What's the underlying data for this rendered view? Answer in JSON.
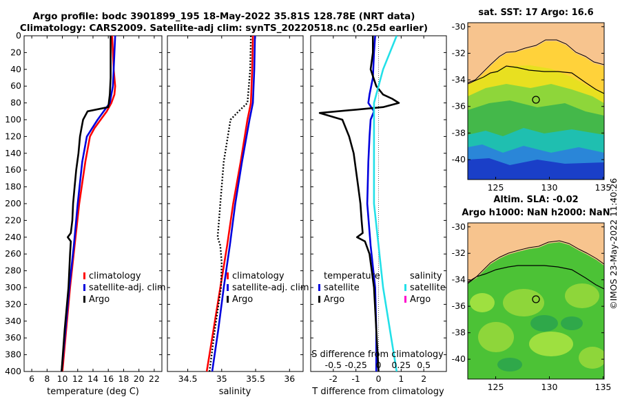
{
  "header": {
    "title_line1": "Argo profile: bodc 3901899_195 18-May-2022 35.81S 128.78E (NRT data)",
    "title_line2": "Climatology: CARS2009. Satellite-adj clim: synTS_20220518.nc (0.25d earlier)"
  },
  "timestamp": "©IMOS 23-May-2022 11:40:26",
  "colors": {
    "climatology": "#ff0000",
    "satellite": "#0000dd",
    "argo": "#000000",
    "salinity_sat": "#22e0e8",
    "salinity_argo": "#ff00cc",
    "land": "#f7c48e"
  },
  "chart_data": [
    {
      "type": "line",
      "title": "",
      "xlabel": "temperature (deg C)",
      "ylabel": "",
      "xlim": [
        5,
        23
      ],
      "ylim": [
        400,
        0
      ],
      "xticks": [
        6,
        8,
        10,
        12,
        14,
        16,
        18,
        20,
        22
      ],
      "yticks": [
        0,
        20,
        40,
        60,
        80,
        100,
        120,
        140,
        160,
        180,
        200,
        220,
        240,
        260,
        280,
        300,
        320,
        340,
        360,
        380,
        400
      ],
      "legend": [
        "climatology",
        "satellite-adj. clim",
        "Argo"
      ],
      "series": [
        {
          "name": "climatology",
          "style": "solid",
          "depth": [
            0,
            20,
            40,
            60,
            70,
            80,
            90,
            100,
            110,
            120,
            150,
            200,
            250,
            300,
            350,
            400
          ],
          "values": [
            16.5,
            16.6,
            16.7,
            16.9,
            16.8,
            16.4,
            15.8,
            15.0,
            14.2,
            13.6,
            13.0,
            12.2,
            11.6,
            11.0,
            10.5,
            10.0
          ]
        },
        {
          "name": "satellite-adj. clim",
          "style": "solid",
          "depth": [
            0,
            20,
            40,
            60,
            80,
            90,
            100,
            110,
            120,
            150,
            200,
            250,
            300,
            350,
            400
          ],
          "values": [
            16.9,
            16.8,
            16.7,
            16.6,
            16.2,
            15.4,
            14.6,
            13.9,
            13.2,
            12.6,
            12.0,
            11.5,
            10.9,
            10.4,
            9.9
          ]
        },
        {
          "name": "Argo",
          "style": "solid",
          "depth": [
            0,
            20,
            50,
            70,
            85,
            90,
            100,
            110,
            120,
            140,
            160,
            180,
            200,
            220,
            235,
            240,
            245,
            260,
            300,
            350,
            400
          ],
          "values": [
            16.3,
            16.3,
            16.3,
            16.2,
            16.0,
            13.3,
            12.7,
            12.5,
            12.3,
            12.1,
            11.8,
            11.6,
            11.4,
            11.3,
            11.1,
            10.7,
            11.1,
            11.0,
            10.8,
            10.3,
            9.9
          ]
        }
      ]
    },
    {
      "type": "line",
      "title": "",
      "xlabel": "salinity",
      "ylabel": "",
      "xlim": [
        34.2,
        36.2
      ],
      "ylim": [
        400,
        0
      ],
      "xticks": [
        34.5,
        35,
        35.5,
        36
      ],
      "legend": [
        "climatology",
        "satellite-adj. clim",
        "Argo"
      ],
      "series": [
        {
          "name": "climatology",
          "style": "solid",
          "depth": [
            0,
            40,
            80,
            100,
            150,
            200,
            250,
            300,
            350,
            400
          ],
          "values": [
            35.46,
            35.45,
            35.43,
            35.38,
            35.28,
            35.17,
            35.08,
            34.98,
            34.88,
            34.78
          ]
        },
        {
          "name": "satellite-adj. clim",
          "style": "solid",
          "depth": [
            0,
            40,
            80,
            100,
            150,
            200,
            250,
            300,
            350,
            400
          ],
          "values": [
            35.49,
            35.48,
            35.46,
            35.41,
            35.3,
            35.2,
            35.12,
            35.03,
            34.95,
            34.86
          ]
        },
        {
          "name": "Argo",
          "style": "dotted",
          "depth": [
            0,
            40,
            80,
            90,
            100,
            120,
            150,
            180,
            200,
            220,
            240,
            250,
            270,
            300,
            350,
            400
          ],
          "values": [
            35.43,
            35.42,
            35.38,
            35.25,
            35.13,
            35.09,
            35.03,
            35.0,
            34.98,
            34.96,
            34.94,
            34.98,
            35.0,
            34.99,
            34.9,
            34.82
          ]
        }
      ]
    },
    {
      "type": "line",
      "title": "",
      "xlabel": "T difference from climatology",
      "ylabel": "",
      "xlim": [
        -3,
        3
      ],
      "ylim": [
        400,
        0
      ],
      "xticks": [
        -2,
        -1,
        0,
        1,
        2
      ],
      "secondary_xlabel": "S difference from climatology",
      "secondary_xticks": [
        "-0.5",
        "-0.25",
        "0",
        "0.25",
        "0.5"
      ],
      "legend_headers": [
        "temperature",
        "salinity"
      ],
      "legend": [
        "satellite",
        "Argo",
        "satellite",
        "Argo"
      ],
      "series": [
        {
          "name": "T satellite",
          "style": "solid",
          "depth": [
            0,
            20,
            50,
            70,
            80,
            90,
            100,
            120,
            150,
            200,
            250,
            300,
            350,
            400
          ],
          "values": [
            -0.15,
            -0.2,
            -0.25,
            -0.4,
            -0.45,
            -0.2,
            -0.35,
            -0.4,
            -0.45,
            -0.5,
            -0.35,
            -0.15,
            -0.1,
            -0.1
          ]
        },
        {
          "name": "T Argo",
          "style": "solid",
          "depth": [
            0,
            20,
            40,
            60,
            70,
            75,
            80,
            85,
            88,
            92,
            100,
            120,
            140,
            160,
            180,
            200,
            220,
            235,
            240,
            245,
            260,
            300,
            350,
            400
          ],
          "values": [
            -0.25,
            -0.25,
            -0.35,
            -0.1,
            0.2,
            0.6,
            0.9,
            0.2,
            -1.0,
            -2.6,
            -1.6,
            -1.3,
            -1.1,
            -1.0,
            -0.9,
            -0.8,
            -0.75,
            -0.7,
            -0.95,
            -0.6,
            -0.4,
            -0.2,
            -0.1,
            0.0
          ]
        },
        {
          "name": "S satellite",
          "style": "solid",
          "depth": [
            0,
            40,
            80,
            120,
            200,
            300,
            400
          ],
          "values": [
            0.2,
            0.05,
            -0.05,
            -0.05,
            -0.05,
            0.05,
            0.2
          ]
        },
        {
          "name": "S Argo",
          "style": "solid",
          "depth": [],
          "values": []
        }
      ]
    }
  ],
  "maps": [
    {
      "title": "sat. SST: 17 Argo: 16.6",
      "title_line2": "",
      "yticks": [
        "-30",
        "-32",
        "-34",
        "-36",
        "-38",
        "-40"
      ],
      "xticks": [
        "125",
        "130",
        "135"
      ],
      "type": "sst"
    },
    {
      "title": "Altim. SLA: -0.02",
      "title_line2": "Argo h1000: NaN h2000: NaN",
      "yticks": [
        "-30",
        "-32",
        "-34",
        "-36",
        "-38",
        "-40"
      ],
      "xticks": [
        "125",
        "130",
        "135"
      ],
      "type": "sla"
    }
  ]
}
